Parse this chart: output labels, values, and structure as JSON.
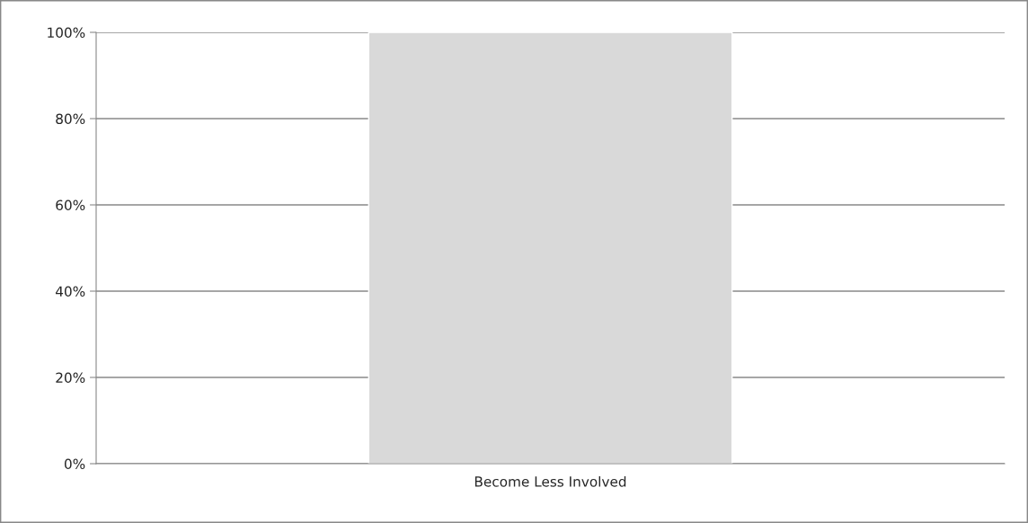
{
  "chart_data": {
    "type": "bar",
    "categories": [
      "Become Less Involved"
    ],
    "values": [
      100
    ],
    "color": "#d9d9d9",
    "ylim": [
      0,
      100
    ],
    "yticks": [
      {
        "value": 0,
        "label": "0%"
      },
      {
        "value": 20,
        "label": "20%"
      },
      {
        "value": 40,
        "label": "40%"
      },
      {
        "value": 60,
        "label": "60%"
      },
      {
        "value": 80,
        "label": "80%"
      },
      {
        "value": 100,
        "label": "100%"
      }
    ],
    "grid": "y",
    "legend": false
  }
}
